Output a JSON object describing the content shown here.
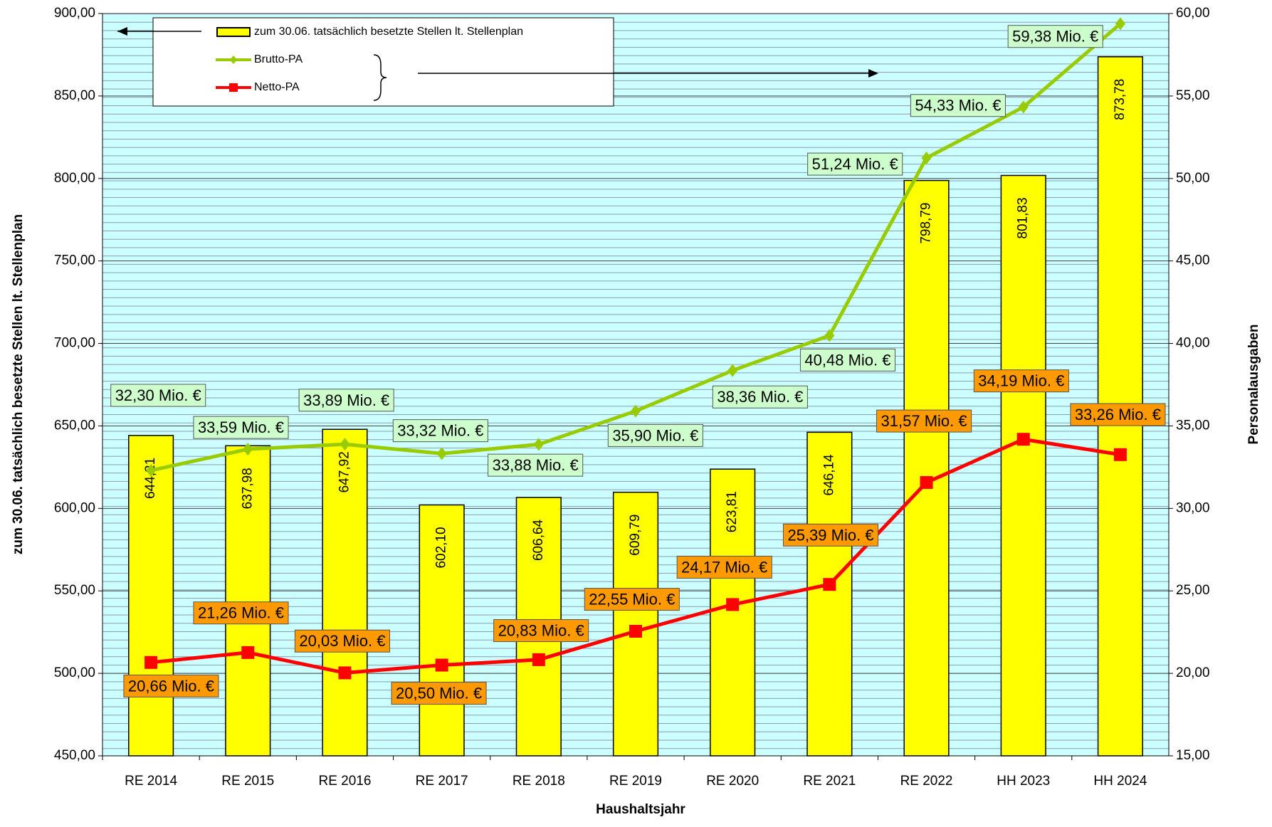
{
  "chart_data": {
    "type": "bar",
    "x_label": "Haushaltsjahr",
    "y_label": "zum 30.06. tatsächlich besetzte Stellen lt. Stellenplan",
    "y2_label": "Personalausgaben",
    "categories": [
      "RE 2014",
      "RE 2015",
      "RE 2016",
      "RE 2017",
      "RE 2018",
      "RE 2019",
      "RE 2020",
      "RE 2021",
      "RE 2022",
      "HH 2023",
      "HH 2024"
    ],
    "series": [
      {
        "name": "zum 30.06. tatsächlich besetzte Stellen lt. Stellenplan",
        "type": "bar",
        "color": "#ffff00",
        "values": [
          644.21,
          637.98,
          647.92,
          602.1,
          606.64,
          609.79,
          623.81,
          646.14,
          798.79,
          801.83,
          873.78
        ],
        "value_labels": [
          "644,21",
          "637,98",
          "647,92",
          "602,10",
          "606,64",
          "609,79",
          "623,81",
          "646,14",
          "798,79",
          "801,83",
          "873,78"
        ]
      },
      {
        "name": "Brutto-PA",
        "type": "line",
        "axis": "y2",
        "color": "#99cc00",
        "label_color": "#ccffcc",
        "values": [
          32.3,
          33.59,
          33.89,
          33.32,
          33.88,
          35.9,
          38.36,
          40.48,
          51.24,
          54.33,
          59.38
        ],
        "value_labels": [
          "32,30 Mio. €",
          "33,59 Mio. €",
          "33,89 Mio. €",
          "33,32 Mio. €",
          "33,88 Mio. €",
          "35,90 Mio. €",
          "38,36 Mio. €",
          "40,48 Mio. €",
          "51,24 Mio. €",
          "54,33 Mio. €",
          "59,38 Mio. €"
        ]
      },
      {
        "name": "Netto-PA",
        "type": "line",
        "axis": "y2",
        "color": "#ff0000",
        "label_color": "#ff9900",
        "values": [
          20.66,
          21.26,
          20.03,
          20.5,
          20.83,
          22.55,
          24.17,
          25.39,
          31.57,
          34.19,
          33.26
        ],
        "value_labels": [
          "20,66 Mio. €",
          "21,26 Mio. €",
          "20,03 Mio. €",
          "20,50 Mio. €",
          "20,83 Mio. €",
          "22,55 Mio. €",
          "24,17 Mio. €",
          "25,39 Mio. €",
          "31,57 Mio. €",
          "34,19 Mio. €",
          "33,26 Mio. €"
        ]
      }
    ],
    "ylim": [
      450,
      900
    ],
    "yticks": [
      {
        "value": 450,
        "label": "450,00"
      },
      {
        "value": 500,
        "label": "500,00"
      },
      {
        "value": 550,
        "label": "550,00"
      },
      {
        "value": 600,
        "label": "600,00"
      },
      {
        "value": 650,
        "label": "650,00"
      },
      {
        "value": 700,
        "label": "700,00"
      },
      {
        "value": 750,
        "label": "750,00"
      },
      {
        "value": 800,
        "label": "800,00"
      },
      {
        "value": 850,
        "label": "850,00"
      },
      {
        "value": 900,
        "label": "900,00"
      }
    ],
    "y2lim": [
      15,
      60
    ],
    "y2ticks": [
      {
        "value": 15,
        "label": "15,00"
      },
      {
        "value": 20,
        "label": "20,00"
      },
      {
        "value": 25,
        "label": "25,00"
      },
      {
        "value": 30,
        "label": "30,00"
      },
      {
        "value": 35,
        "label": "35,00"
      },
      {
        "value": 40,
        "label": "40,00"
      },
      {
        "value": 45,
        "label": "45,00"
      },
      {
        "value": 50,
        "label": "50,00"
      },
      {
        "value": 55,
        "label": "55,00"
      },
      {
        "value": 60,
        "label": "60,00"
      }
    ],
    "grid": true,
    "legend": "top-left"
  }
}
